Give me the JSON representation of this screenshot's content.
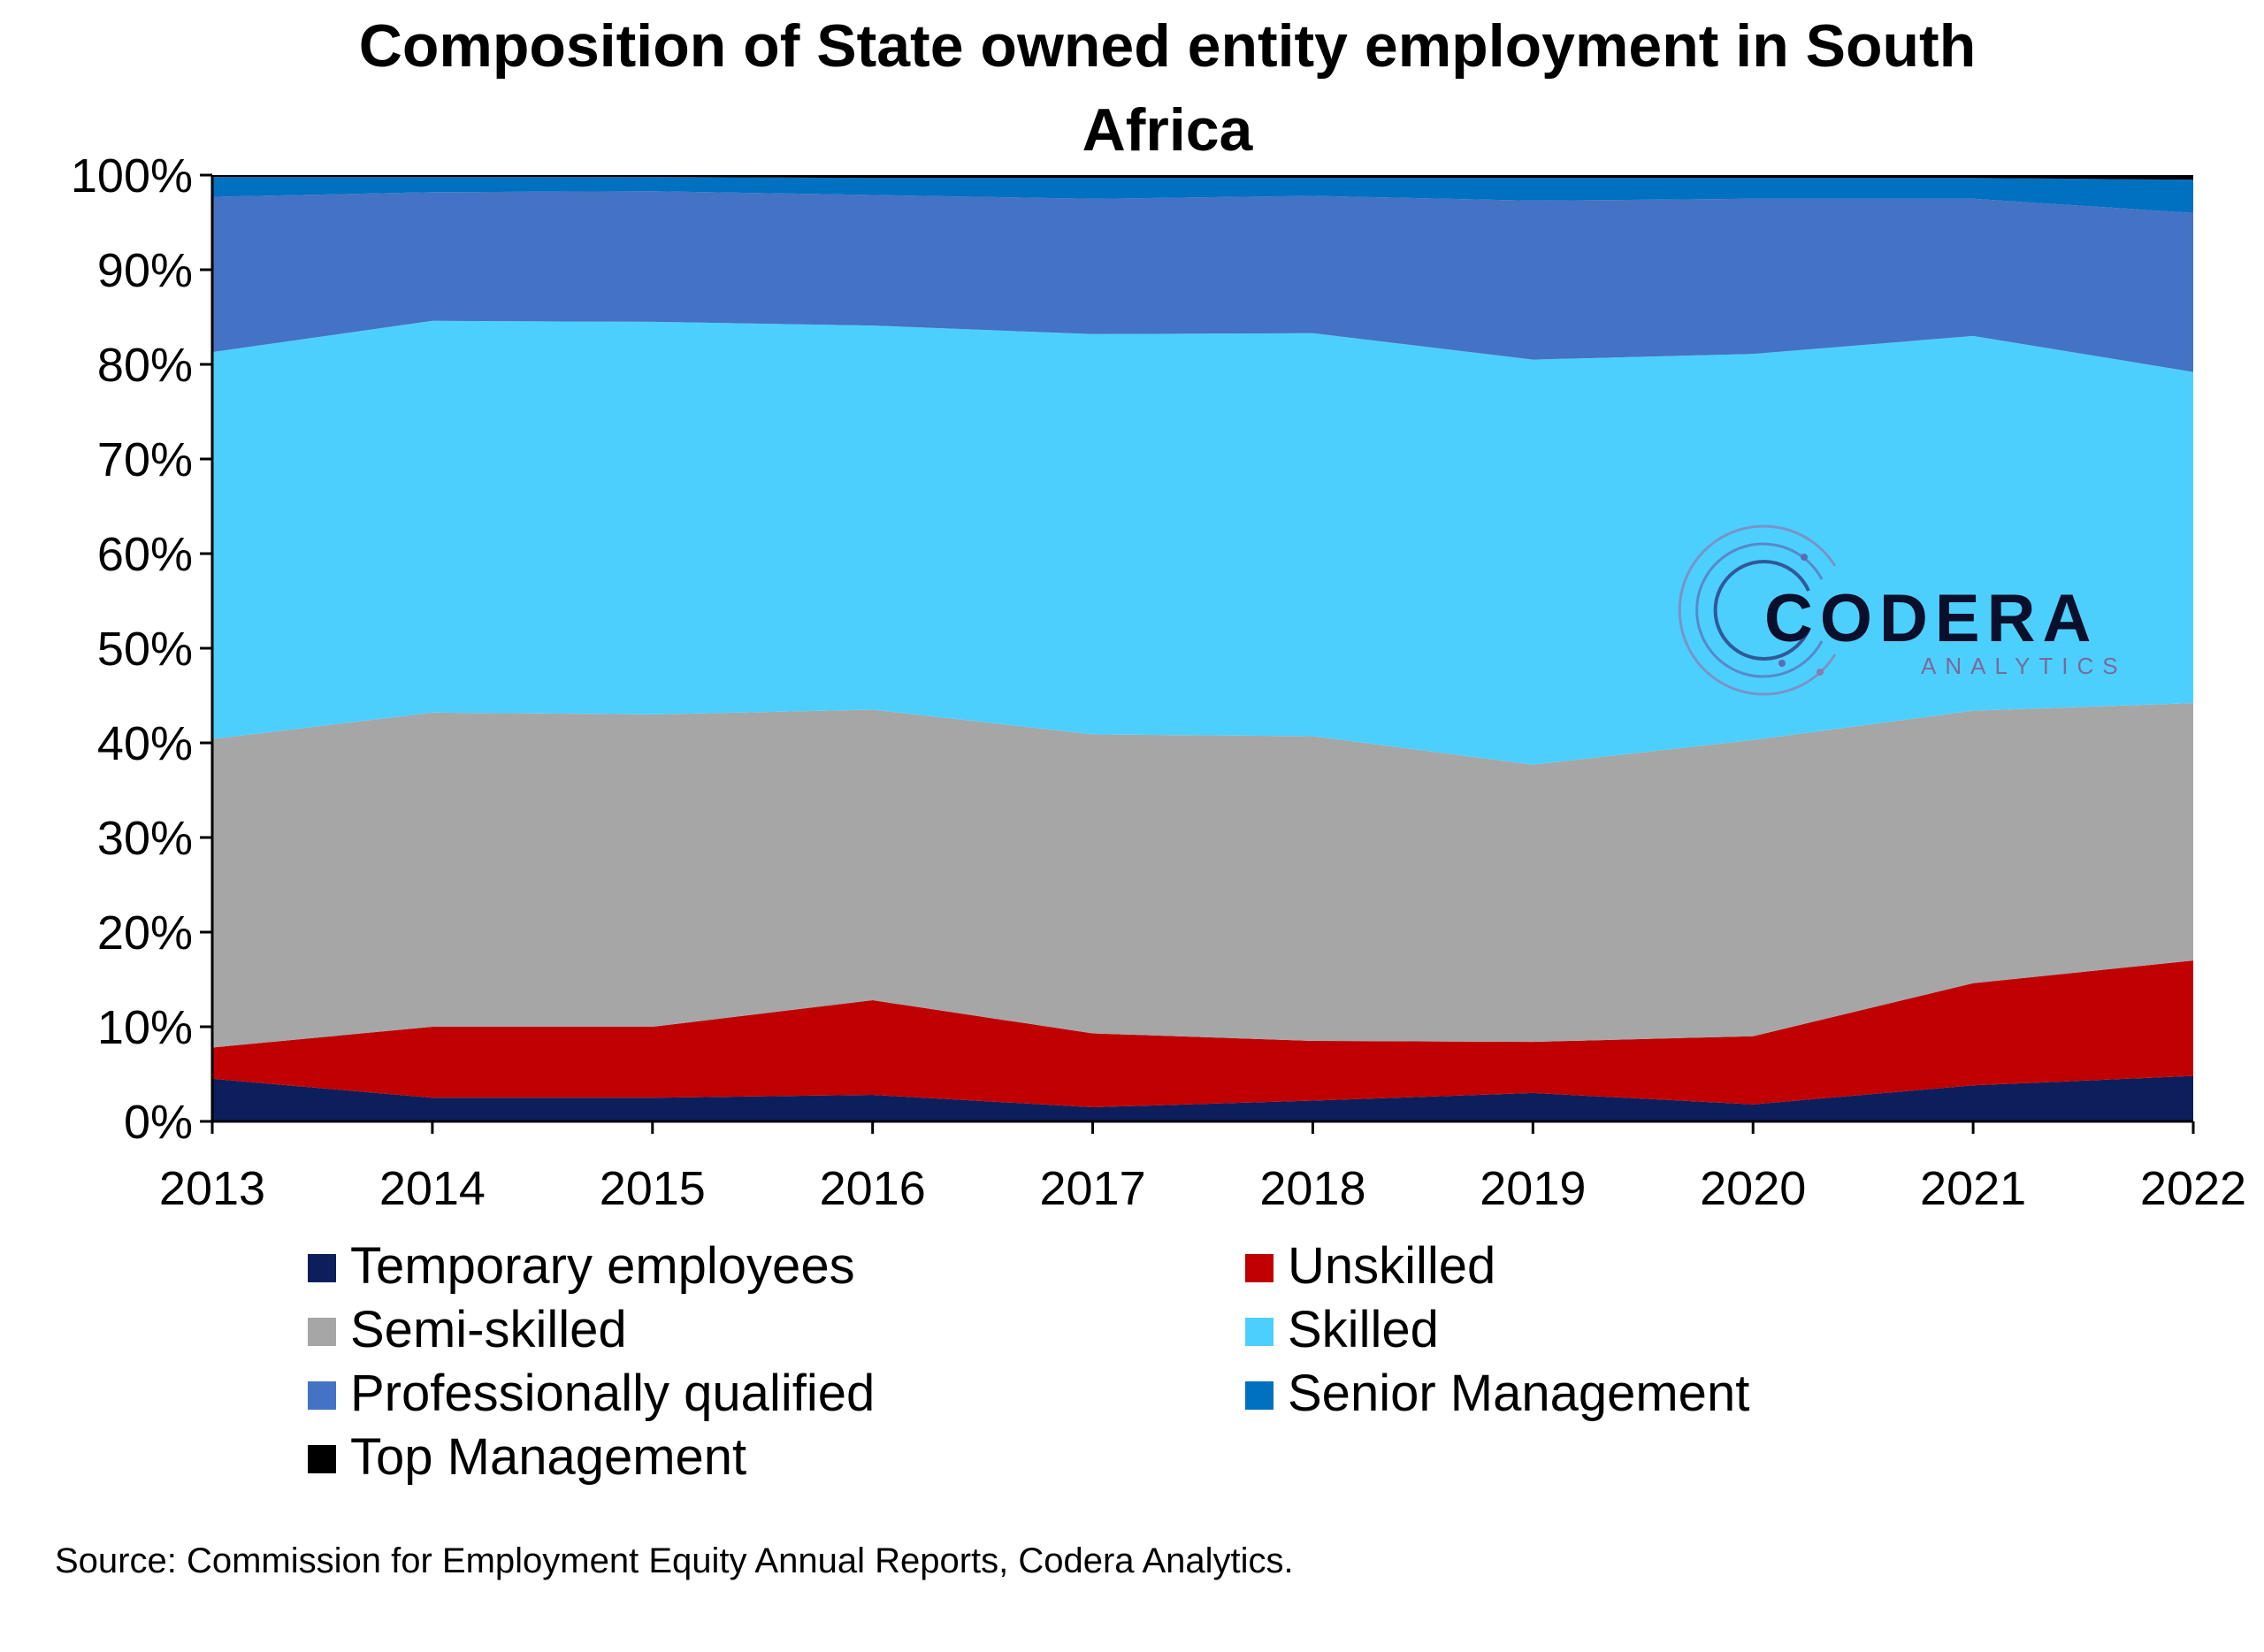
{
  "chart_data": {
    "type": "area",
    "stacked": "percent",
    "title": "Composition of State owned entity employment in South Africa",
    "title_lines": [
      "Composition of State owned entity employment in South",
      "Africa"
    ],
    "x": [
      "2013",
      "2014",
      "2015",
      "2016",
      "2017",
      "2018",
      "2019",
      "2020",
      "2021",
      "2022"
    ],
    "ylim": [
      0,
      100
    ],
    "yticks": [
      "0%",
      "10%",
      "20%",
      "30%",
      "40%",
      "50%",
      "60%",
      "70%",
      "80%",
      "90%",
      "100%"
    ],
    "ytick_values": [
      0,
      10,
      20,
      30,
      40,
      50,
      60,
      70,
      80,
      90,
      100
    ],
    "grid": false,
    "legend_position": "bottom",
    "series": [
      {
        "name": "Temporary employees",
        "color": "#0c1f5c",
        "values": [
          4.5,
          2.5,
          2.5,
          2.8,
          1.5,
          2.2,
          3.0,
          1.8,
          3.8,
          4.8
        ]
      },
      {
        "name": "Unskilled",
        "color": "#c00000",
        "values": [
          3.3,
          7.5,
          7.5,
          10.0,
          7.8,
          6.3,
          5.4,
          7.2,
          10.8,
          12.2
        ]
      },
      {
        "name": "Semi-skilled",
        "color": "#a6a6a6",
        "values": [
          32.6,
          33.2,
          33.0,
          30.7,
          31.6,
          32.2,
          29.3,
          31.3,
          28.8,
          27.2
        ]
      },
      {
        "name": "Skilled",
        "color": "#4dcffd",
        "values": [
          40.9,
          41.4,
          41.5,
          40.6,
          42.3,
          42.6,
          42.8,
          40.8,
          39.6,
          35.0
        ]
      },
      {
        "name": "Professionally qualified",
        "color": "#4472c4",
        "values": [
          16.4,
          13.6,
          13.8,
          13.8,
          14.3,
          14.5,
          16.8,
          16.4,
          14.5,
          16.8
        ]
      },
      {
        "name": "Senior Management",
        "color": "#0070c0",
        "values": [
          2.1,
          1.6,
          1.5,
          1.8,
          2.2,
          1.9,
          2.4,
          2.2,
          2.2,
          3.5
        ]
      },
      {
        "name": "Top Management",
        "color": "#000000",
        "values": [
          0.2,
          0.2,
          0.2,
          0.3,
          0.3,
          0.3,
          0.3,
          0.3,
          0.3,
          0.5
        ]
      }
    ],
    "source": "Source: Commission for Employment Equity Annual Reports, Codera Analytics."
  },
  "watermark": {
    "name": "CODERA",
    "tagline": "ANALYTICS"
  }
}
